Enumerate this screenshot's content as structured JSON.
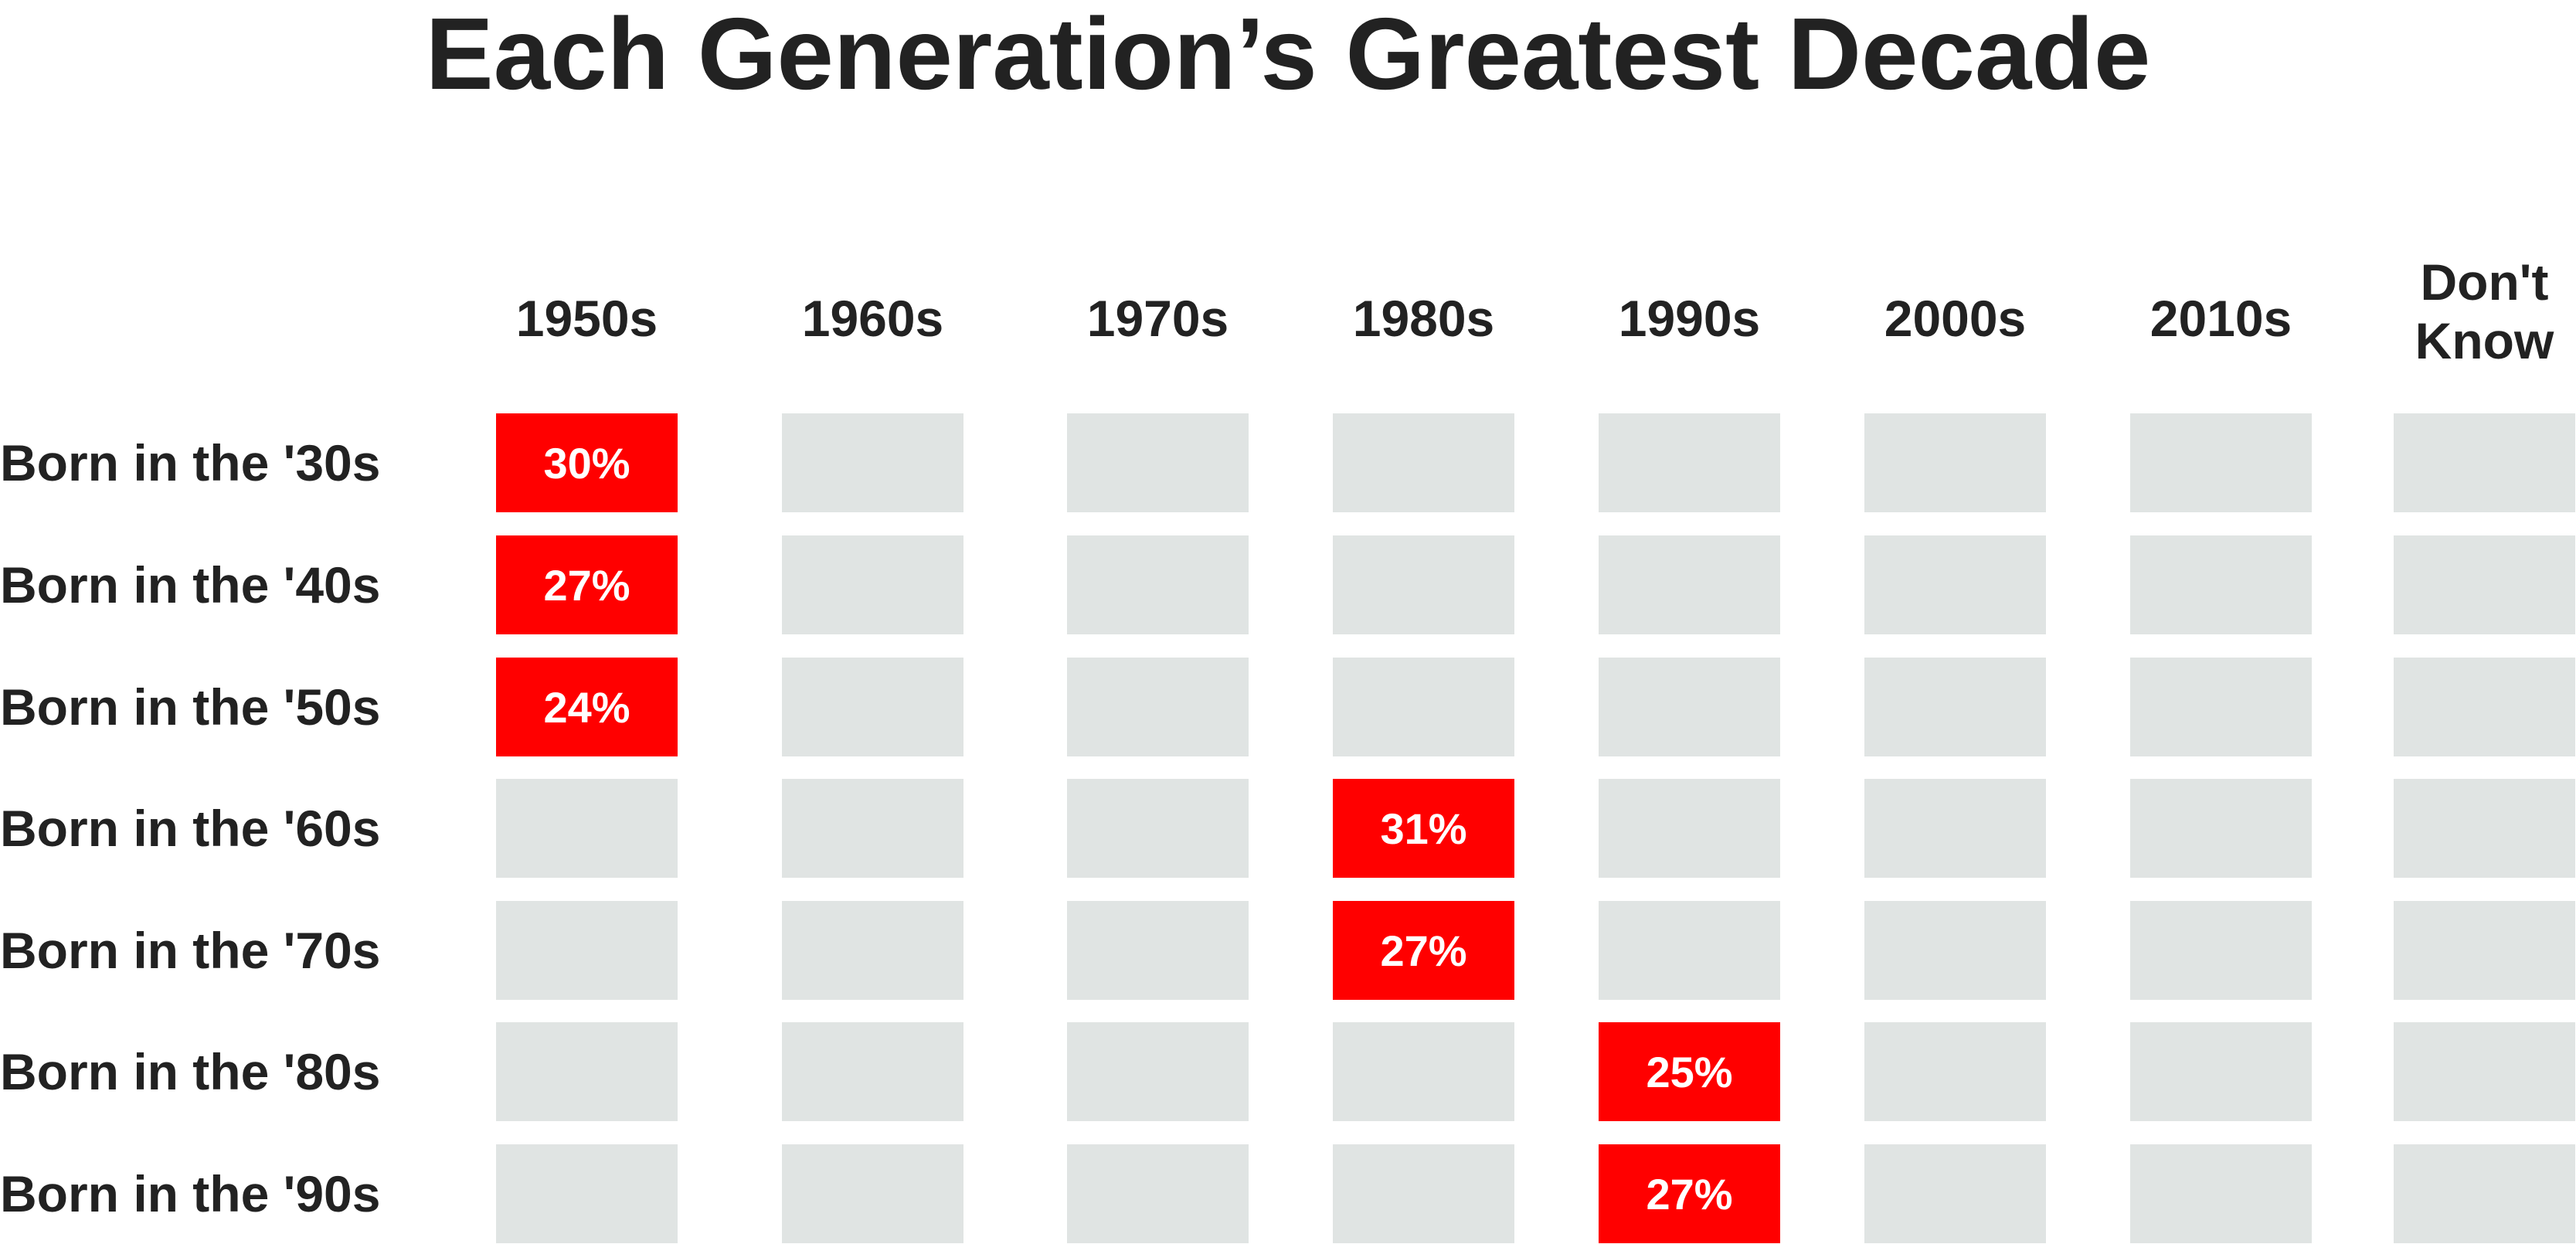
{
  "chart_data": {
    "type": "heatmap",
    "title": "Each Generation’s Greatest Decade",
    "columns": [
      "1950s",
      "1960s",
      "1970s",
      "1980s",
      "1990s",
      "2000s",
      "2010s",
      "Don't Know"
    ],
    "rows": [
      "Born in the '30s",
      "Born in the '40s",
      "Born in the '50s",
      "Born in the '60s",
      "Born in the '70s",
      "Born in the '80s",
      "Born in the '90s"
    ],
    "highlights": [
      {
        "row": "Born in the '30s",
        "column": "1950s",
        "value": 30,
        "label": "30%"
      },
      {
        "row": "Born in the '40s",
        "column": "1950s",
        "value": 27,
        "label": "27%"
      },
      {
        "row": "Born in the '50s",
        "column": "1950s",
        "value": 24,
        "label": "24%"
      },
      {
        "row": "Born in the '60s",
        "column": "1980s",
        "value": 31,
        "label": "31%"
      },
      {
        "row": "Born in the '70s",
        "column": "1980s",
        "value": 27,
        "label": "27%"
      },
      {
        "row": "Born in the '80s",
        "column": "1990s",
        "value": 25,
        "label": "25%"
      },
      {
        "row": "Born in the '90s",
        "column": "1990s",
        "value": 27,
        "label": "27%"
      }
    ],
    "colors": {
      "highlight": "#ff0000",
      "empty": "#e0e4e3",
      "text": "#222222",
      "highlight_text": "#ffffff"
    }
  }
}
